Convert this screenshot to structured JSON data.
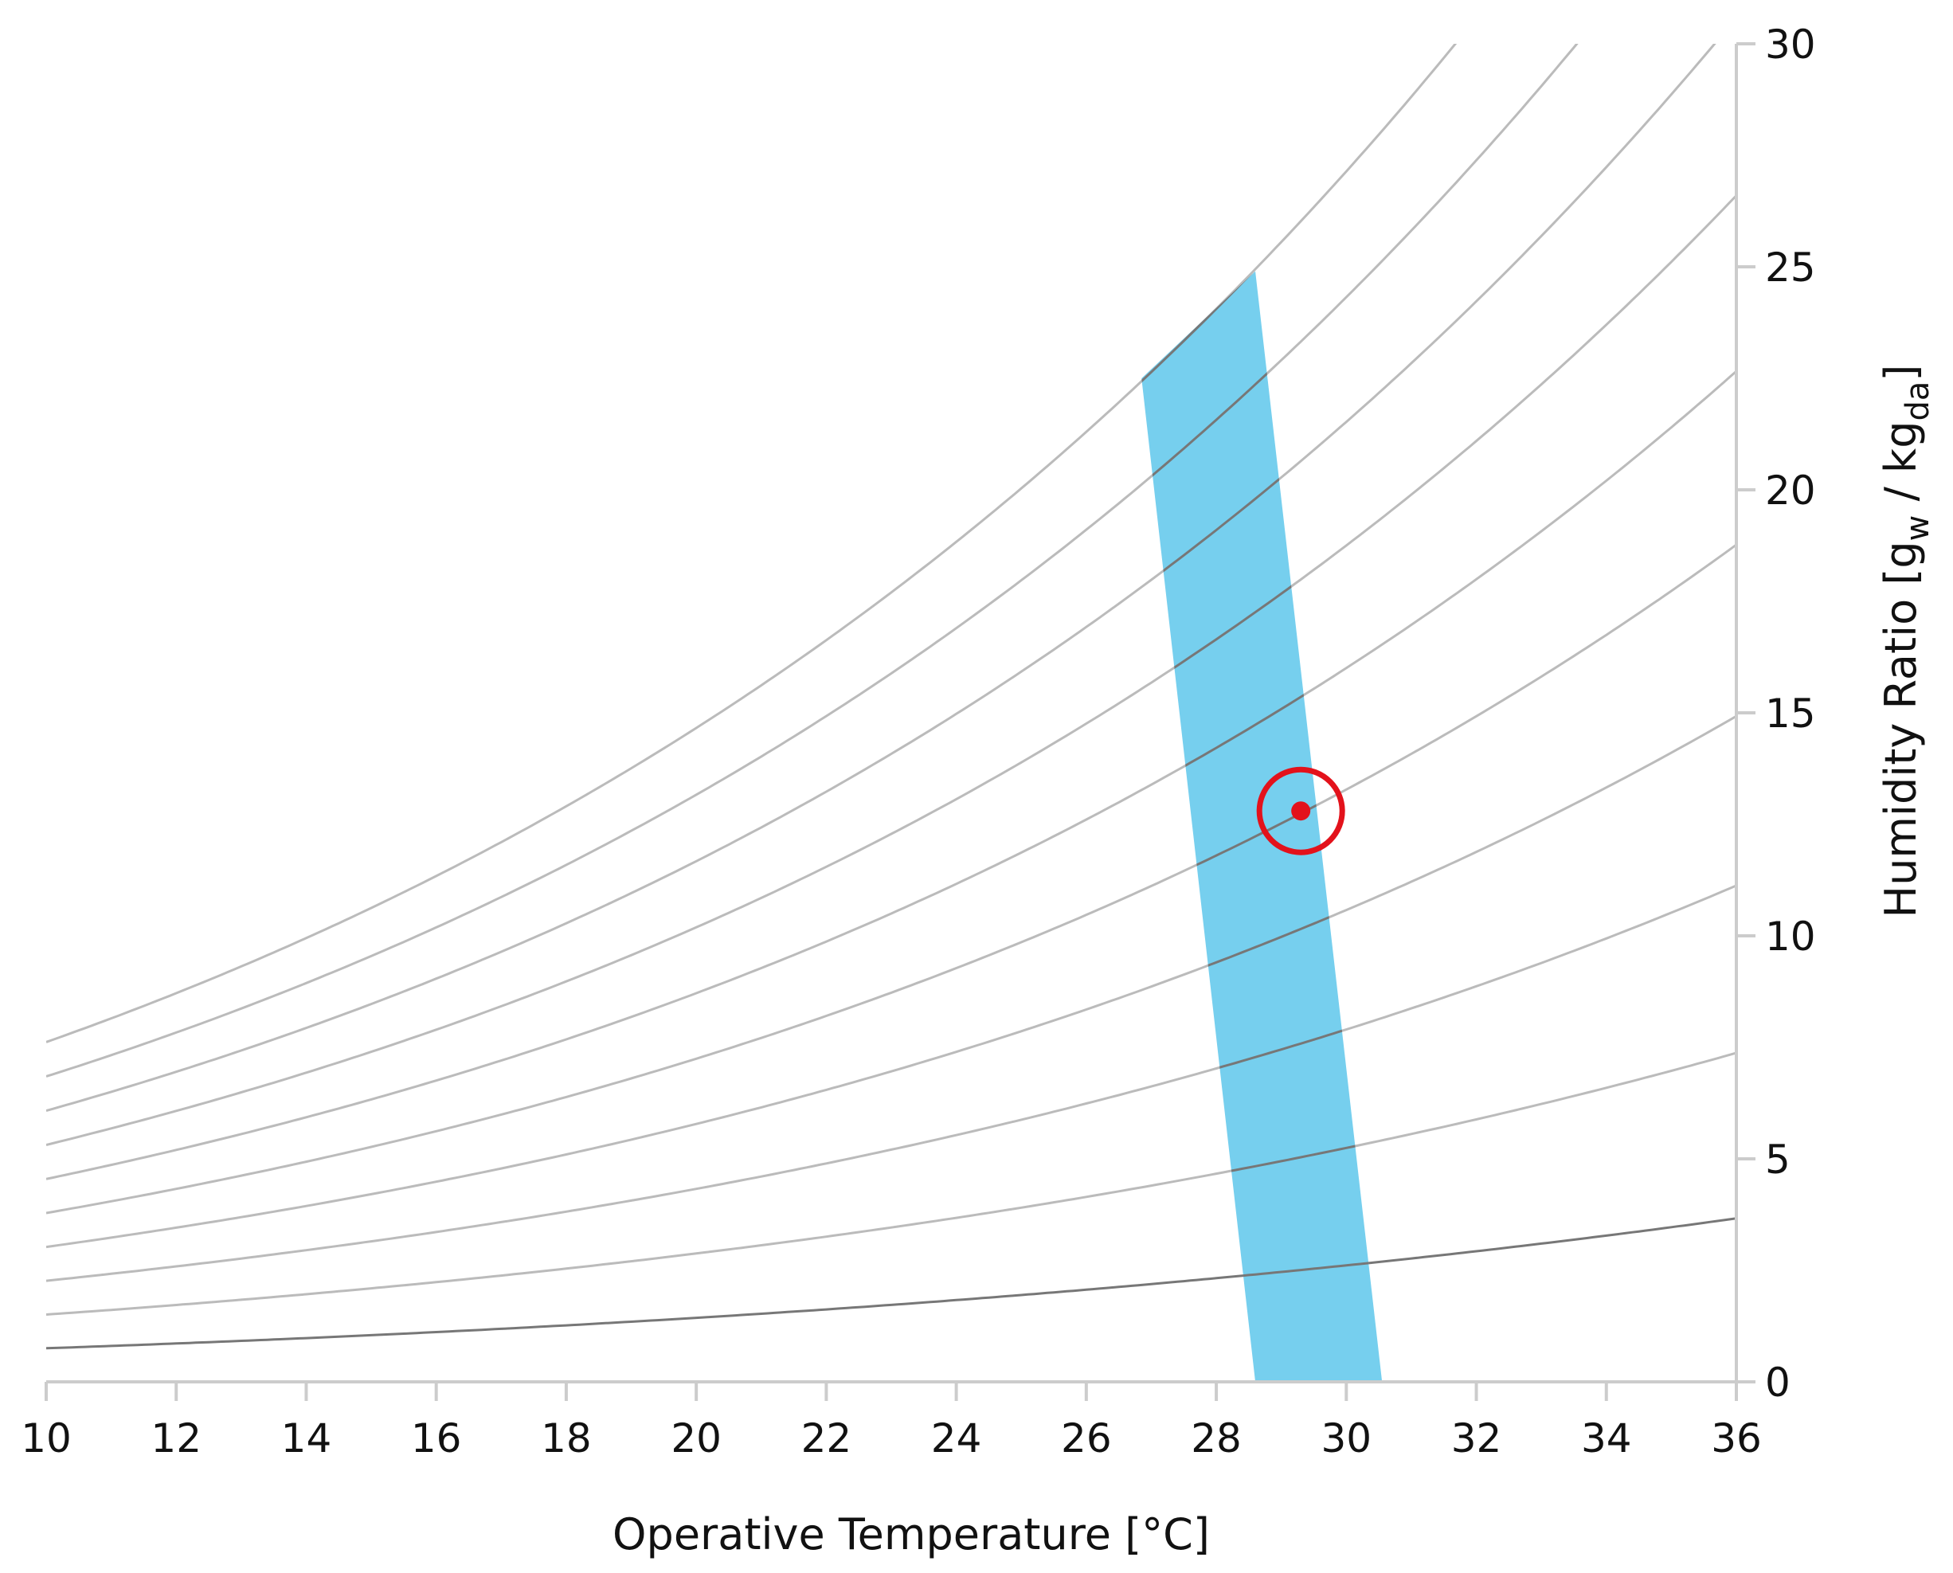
{
  "chart_data": {
    "type": "line",
    "title": "",
    "xlabel": "Operative Temperature [°C]",
    "ylabel": {
      "prefix": "Humidity Ratio [g",
      "sub1": "w",
      "middle": " / kg",
      "sub2": "da",
      "suffix": "]"
    },
    "xlim": [
      10,
      36
    ],
    "ylim": [
      0,
      30
    ],
    "x_ticks": [
      "10",
      "12",
      "14",
      "16",
      "18",
      "20",
      "22",
      "24",
      "26",
      "28",
      "30",
      "32",
      "34",
      "36"
    ],
    "y_ticks": [
      "0",
      "5",
      "10",
      "15",
      "20",
      "25",
      "30"
    ],
    "y_axis_position": "right",
    "grid": false,
    "relative_humidity_curves": [
      10,
      20,
      30,
      40,
      50,
      60,
      70,
      80,
      90,
      100
    ],
    "comfort_zone": {
      "color": "#76cfee",
      "polygon": [
        {
          "x": 28.6,
          "y": 0
        },
        {
          "x": 30.55,
          "y": 0
        },
        {
          "x": 28.6,
          "y": 24.9
        },
        {
          "x": 26.85,
          "y": 22.5
        }
      ]
    },
    "current_condition": {
      "x": 29.3,
      "y": 12.8
    },
    "colors": {
      "curve": "#bbbbbb",
      "curve_in_zone": "#777777",
      "curve_10": "#777777",
      "marker": "#e3121b",
      "axis": "#cccccc"
    }
  }
}
